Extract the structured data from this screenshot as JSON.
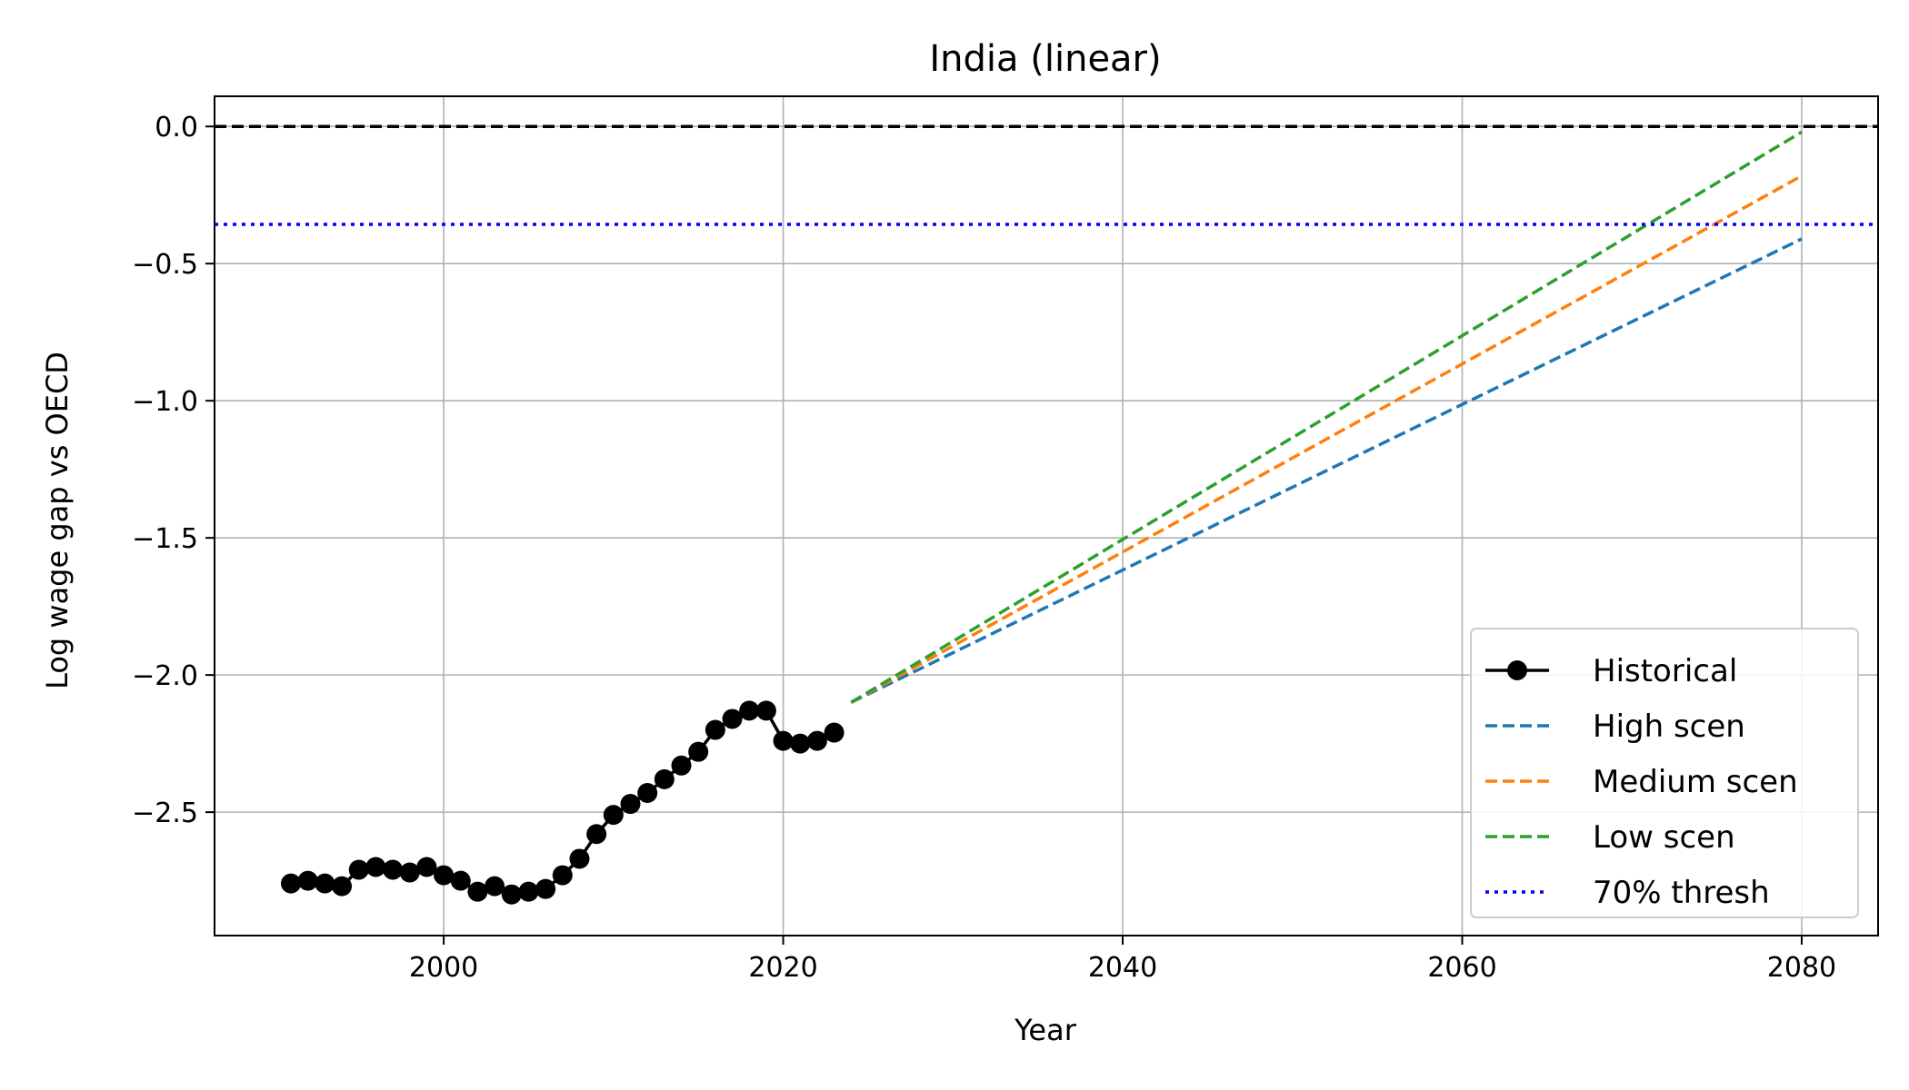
{
  "chart_data": {
    "type": "line",
    "title": "India (linear)",
    "xlabel": "Year",
    "ylabel": "Log wage gap vs OECD",
    "xlim": [
      1986.5,
      2084.5
    ],
    "ylim": [
      -2.95,
      0.11
    ],
    "xticks": [
      2000,
      2020,
      2040,
      2060,
      2080
    ],
    "yticks": [
      0.0,
      -0.5,
      -1.0,
      -1.5,
      -2.0,
      -2.5
    ],
    "ytick_labels": [
      "0.0",
      "−0.5",
      "−1.0",
      "−1.5",
      "−2.0",
      "−2.5"
    ],
    "grid": true,
    "legend_position": "lower-right",
    "series": [
      {
        "name": "Historical",
        "style": "solid-marker",
        "color": "#000000",
        "x": [
          1991,
          1992,
          1993,
          1994,
          1995,
          1996,
          1997,
          1998,
          1999,
          2000,
          2001,
          2002,
          2003,
          2004,
          2005,
          2006,
          2007,
          2008,
          2009,
          2010,
          2011,
          2012,
          2013,
          2014,
          2015,
          2016,
          2017,
          2018,
          2019,
          2020,
          2021,
          2022,
          2023
        ],
        "y": [
          -2.76,
          -2.75,
          -2.76,
          -2.77,
          -2.71,
          -2.7,
          -2.71,
          -2.72,
          -2.7,
          -2.73,
          -2.75,
          -2.79,
          -2.77,
          -2.8,
          -2.79,
          -2.78,
          -2.73,
          -2.67,
          -2.58,
          -2.51,
          -2.47,
          -2.43,
          -2.38,
          -2.33,
          -2.28,
          -2.2,
          -2.16,
          -2.13,
          -2.13,
          -2.24,
          -2.25,
          -2.24,
          -2.21
        ]
      },
      {
        "name": "High scen",
        "style": "dashed",
        "color": "#1f77b4",
        "x": [
          2024,
          2080
        ],
        "y": [
          -2.1,
          -0.41
        ]
      },
      {
        "name": "Medium scen",
        "style": "dashed",
        "color": "#ff7f0e",
        "x": [
          2024,
          2080
        ],
        "y": [
          -2.1,
          -0.18
        ]
      },
      {
        "name": "Low scen",
        "style": "dashed",
        "color": "#2ca02c",
        "x": [
          2024,
          2080
        ],
        "y": [
          -2.1,
          -0.02
        ]
      },
      {
        "name": "70% thresh",
        "style": "dotted-hline",
        "color": "#0000ff",
        "y": -0.357
      }
    ],
    "reference_line": {
      "style": "dashed-hline",
      "color": "#000000",
      "y": 0.0
    }
  }
}
